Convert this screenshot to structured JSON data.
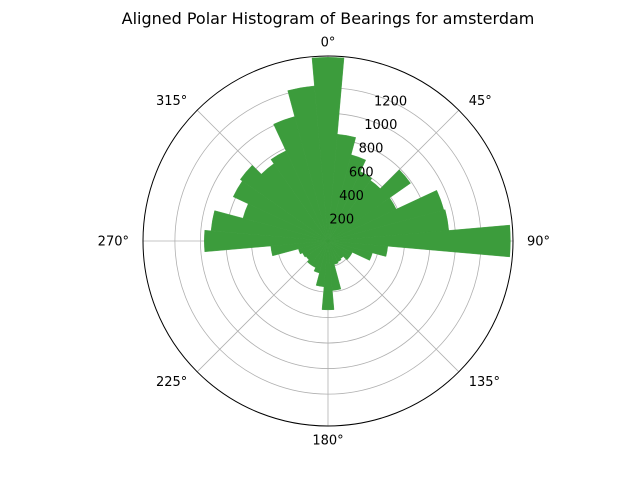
{
  "chart_data": {
    "type": "bar",
    "projection": "polar",
    "title": "Aligned Polar Histogram of Bearings for amsterdam",
    "theta_zero": "N",
    "theta_direction": "clockwise",
    "bin_width_deg": 10,
    "x": [
      0,
      10,
      20,
      30,
      40,
      50,
      60,
      70,
      80,
      90,
      100,
      110,
      120,
      130,
      140,
      150,
      160,
      170,
      180,
      190,
      200,
      210,
      220,
      230,
      240,
      250,
      260,
      270,
      280,
      290,
      300,
      310,
      320,
      330,
      340,
      350
    ],
    "values": [
      1440,
      840,
      700,
      600,
      580,
      790,
      590,
      940,
      950,
      1430,
      470,
      360,
      210,
      210,
      170,
      180,
      190,
      390,
      540,
      360,
      260,
      230,
      230,
      210,
      220,
      240,
      450,
      970,
      920,
      690,
      820,
      840,
      740,
      780,
      1010,
      1220
    ],
    "theta_ticks": [
      "0°",
      "45°",
      "90°",
      "135°",
      "180°",
      "225°",
      "270°",
      "315°"
    ],
    "r_ticks": [
      200,
      400,
      600,
      800,
      1000,
      1200
    ],
    "r_tick_labels": [
      "200",
      "400",
      "600",
      "800",
      "1000",
      "1200"
    ],
    "rlim": [
      0,
      1450
    ],
    "grid": true,
    "colors": {
      "bar": "#3c9c3c",
      "grid": "#b0b0b0",
      "frame": "#000000"
    }
  }
}
